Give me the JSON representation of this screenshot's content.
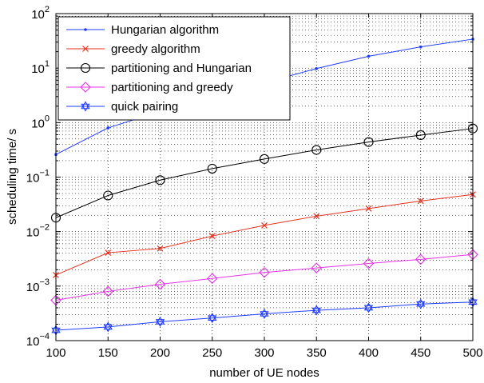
{
  "chart_data": {
    "type": "line",
    "xlabel": "number of UE nodes",
    "ylabel": "scheduling time/ s",
    "x": [
      100,
      150,
      200,
      250,
      300,
      350,
      400,
      450,
      500
    ],
    "xlim": [
      100,
      500
    ],
    "ylim": [
      0.0001,
      100
    ],
    "yscale": "log",
    "grid": true,
    "legend_position": "top-left",
    "x_ticks": [
      "100",
      "150",
      "200",
      "250",
      "300",
      "350",
      "400",
      "450",
      "500"
    ],
    "y_ticks": [
      {
        "value": 0.0001,
        "base": "10",
        "exp": "−4"
      },
      {
        "value": 0.001,
        "base": "10",
        "exp": "−3"
      },
      {
        "value": 0.01,
        "base": "10",
        "exp": "−2"
      },
      {
        "value": 0.1,
        "base": "10",
        "exp": "−1"
      },
      {
        "value": 1,
        "base": "10",
        "exp": "0"
      },
      {
        "value": 10,
        "base": "10",
        "exp": "1"
      },
      {
        "value": 100,
        "base": "10",
        "exp": "2"
      }
    ],
    "series": [
      {
        "name": "Hungarian algorithm",
        "color": "#1f3bff",
        "marker": "dot",
        "values": [
          0.26,
          0.8,
          1.6,
          3.0,
          5.4,
          9.8,
          16.5,
          24.5,
          34.0
        ]
      },
      {
        "name": "greedy algorithm",
        "color": "#e8321f",
        "marker": "x",
        "values": [
          0.0016,
          0.0041,
          0.0049,
          0.0083,
          0.013,
          0.0192,
          0.0265,
          0.0365,
          0.048
        ]
      },
      {
        "name": "partitioning and Hungarian",
        "color": "#000000",
        "marker": "circle",
        "values": [
          0.018,
          0.046,
          0.088,
          0.143,
          0.215,
          0.315,
          0.44,
          0.59,
          0.78
        ]
      },
      {
        "name": "partitioning and greedy",
        "color": "#e632e6",
        "marker": "diamond",
        "values": [
          0.00055,
          0.0008,
          0.00108,
          0.00138,
          0.00178,
          0.00215,
          0.0026,
          0.0031,
          0.0038
        ]
      },
      {
        "name": "quick pairing",
        "color": "#1f3bff",
        "marker": "hexagram",
        "values": [
          0.000155,
          0.000178,
          0.000222,
          0.00026,
          0.00031,
          0.00036,
          0.0004,
          0.00047,
          0.00051
        ]
      }
    ]
  }
}
